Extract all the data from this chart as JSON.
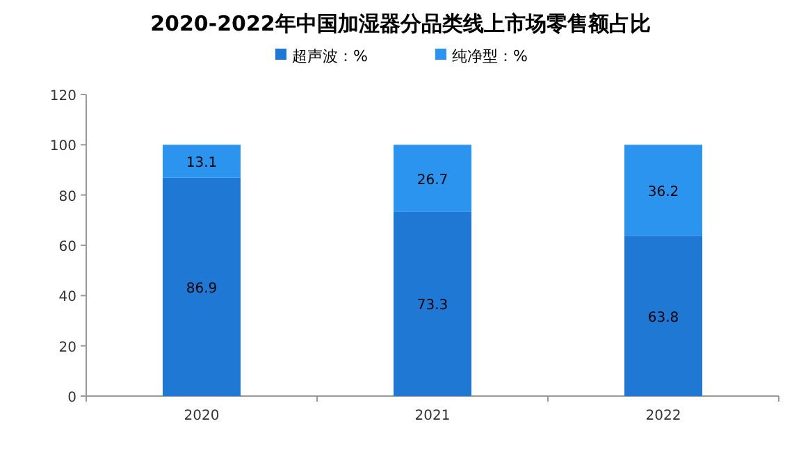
{
  "chart_data": {
    "type": "bar",
    "title": "2020-2022年中国加湿器分品类线上市场零售额占比",
    "categories": [
      "2020",
      "2021",
      "2022"
    ],
    "stacked": true,
    "series": [
      {
        "name": "超声波：%",
        "color": "#1f78d3",
        "values": [
          86.9,
          73.3,
          63.8
        ]
      },
      {
        "name": "纯净型：%",
        "color": "#2a94ee",
        "values": [
          13.1,
          26.7,
          36.2
        ]
      }
    ],
    "ylim": [
      0,
      120
    ],
    "yticks": [
      0,
      20,
      40,
      60,
      80,
      100,
      120
    ],
    "grid": false,
    "legend": "top",
    "data_labels": true
  }
}
